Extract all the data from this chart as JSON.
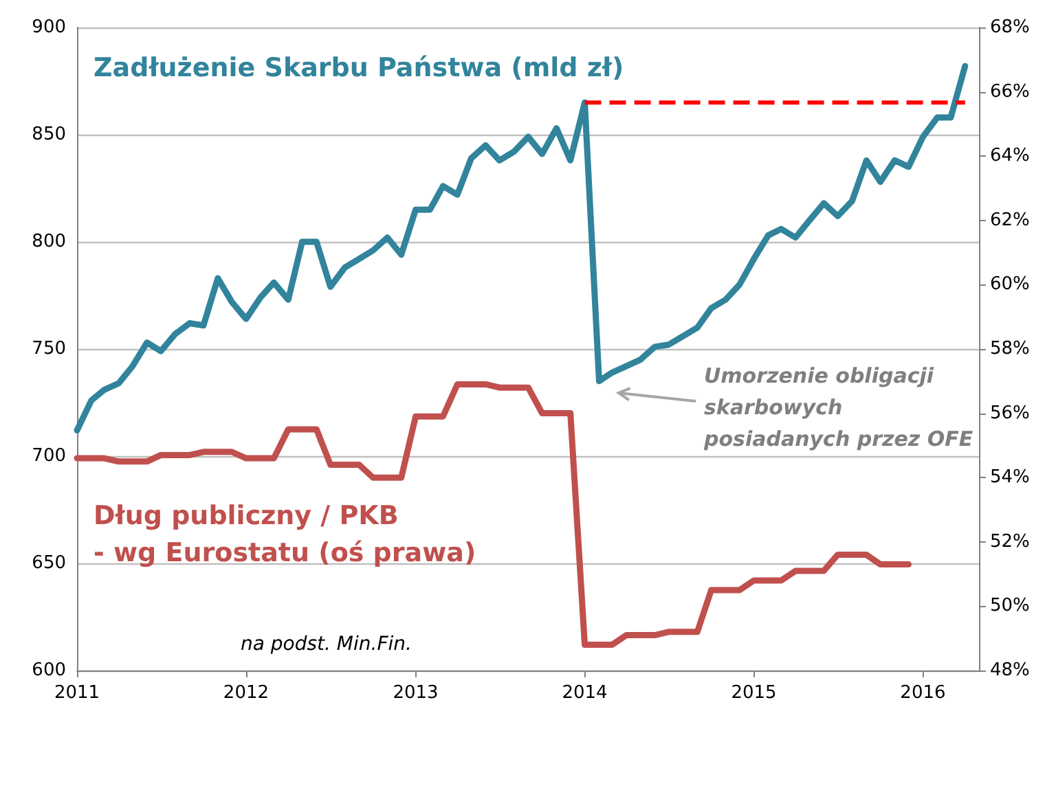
{
  "chart_data": {
    "type": "line",
    "x": [
      "2011-01",
      "2011-02",
      "2011-03",
      "2011-04",
      "2011-05",
      "2011-06",
      "2011-07",
      "2011-08",
      "2011-09",
      "2011-10",
      "2011-11",
      "2011-12",
      "2012-01",
      "2012-02",
      "2012-03",
      "2012-04",
      "2012-05",
      "2012-06",
      "2012-07",
      "2012-08",
      "2012-09",
      "2012-10",
      "2012-11",
      "2012-12",
      "2013-01",
      "2013-02",
      "2013-03",
      "2013-04",
      "2013-05",
      "2013-06",
      "2013-07",
      "2013-08",
      "2013-09",
      "2013-10",
      "2013-11",
      "2013-12",
      "2014-01",
      "2014-02",
      "2014-03",
      "2014-04",
      "2014-05",
      "2014-06",
      "2014-07",
      "2014-08",
      "2014-09",
      "2014-10",
      "2014-11",
      "2014-12",
      "2015-01",
      "2015-02",
      "2015-03",
      "2015-04",
      "2015-05",
      "2015-06",
      "2015-07",
      "2015-08",
      "2015-09",
      "2015-10",
      "2015-11",
      "2015-12",
      "2016-01",
      "2016-02",
      "2016-03",
      "2016-04"
    ],
    "series": [
      {
        "name": "Zadłużenie Skarbu Państwa (mld zł)",
        "color": "#31849b",
        "values": [
          712,
          726,
          731,
          734,
          742,
          753,
          749,
          757,
          762,
          761,
          783,
          772,
          764,
          774,
          781,
          773,
          800,
          800,
          779,
          788,
          792,
          796,
          802,
          794,
          815,
          815,
          826,
          822,
          839,
          845,
          838,
          842,
          849,
          841,
          853,
          838,
          865,
          735,
          739,
          742,
          745,
          751,
          752,
          756,
          760,
          769,
          773,
          780,
          792,
          803,
          806,
          802,
          810,
          818,
          812,
          819,
          838,
          828,
          838,
          835,
          849,
          858,
          858,
          882
        ]
      },
      {
        "name": "Dług publiczny / PKB\n- wg Eurostatu (oś prawa)",
        "color": "#c0504d",
        "axis": "y2",
        "values": [
          54.6,
          54.6,
          54.6,
          54.5,
          54.5,
          54.5,
          54.7,
          54.7,
          54.7,
          54.8,
          54.8,
          54.8,
          54.6,
          54.6,
          54.6,
          55.5,
          55.5,
          55.5,
          54.4,
          54.4,
          54.4,
          54.0,
          54.0,
          54.0,
          55.9,
          55.9,
          55.9,
          56.9,
          56.9,
          56.9,
          56.8,
          56.8,
          56.8,
          56.0,
          56.0,
          56.0,
          48.8,
          48.8,
          48.8,
          49.1,
          49.1,
          49.1,
          49.2,
          49.2,
          49.2,
          50.5,
          50.5,
          50.5,
          50.8,
          50.8,
          50.8,
          51.1,
          51.1,
          51.1,
          51.6,
          51.6,
          51.6,
          51.3,
          51.3,
          51.3,
          null,
          null,
          null,
          null
        ]
      },
      {
        "color": "#ff0000",
        "line_style": "dashed",
        "x": [
          "2014-01",
          "2016-04"
        ],
        "values": [
          865,
          865
        ]
      }
    ],
    "xlim": [
      "2011-01",
      "2016-05"
    ],
    "xticks": [
      "2011",
      "2012",
      "2013",
      "2014",
      "2015",
      "2016"
    ],
    "ylim": [
      600,
      900
    ],
    "yticks": [
      600,
      650,
      700,
      750,
      800,
      850,
      900
    ],
    "y2lim": [
      48,
      68
    ],
    "y2ticks": [
      {
        "value": 48,
        "label": "48%"
      },
      {
        "value": 50,
        "label": "50%"
      },
      {
        "value": 52,
        "label": "52%"
      },
      {
        "value": 54,
        "label": "54%"
      },
      {
        "value": 56,
        "label": "56%"
      },
      {
        "value": 58,
        "label": "58%"
      },
      {
        "value": 60,
        "label": "60%"
      },
      {
        "value": 62,
        "label": "62%"
      },
      {
        "value": 64,
        "label": "64%"
      },
      {
        "value": 66,
        "label": "66%"
      },
      {
        "value": 68,
        "label": "68%"
      }
    ],
    "annotations": [
      "Umorzenie obligacji\nskarbowych\nposiadanych przez OFE",
      "na podst. Min.Fin."
    ],
    "grid": "y",
    "legend": false,
    "marker": "none",
    "line_style": "solid"
  }
}
